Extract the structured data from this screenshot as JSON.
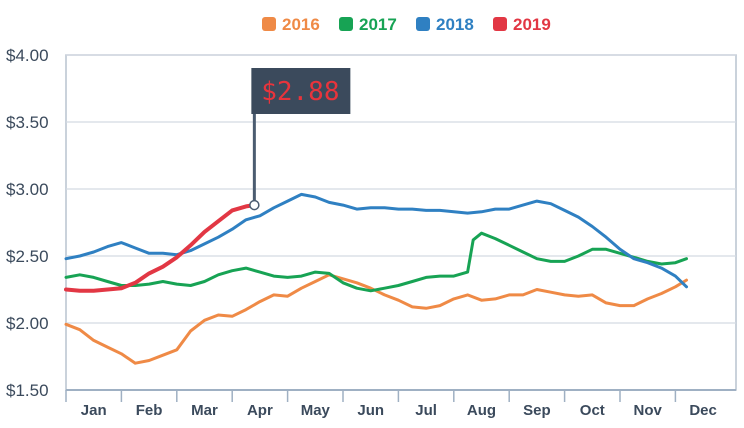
{
  "chart_data": {
    "type": "line",
    "title": "",
    "xlabel": "",
    "ylabel": "",
    "ylim": [
      1.5,
      4.0
    ],
    "y_ticks": [
      "$1.50",
      "$2.00",
      "$2.50",
      "$3.00",
      "$3.50",
      "$4.00"
    ],
    "y_tick_values": [
      1.5,
      2.0,
      2.5,
      3.0,
      3.5,
      4.0
    ],
    "categories": [
      "Jan",
      "Feb",
      "Mar",
      "Apr",
      "May",
      "Jun",
      "Jul",
      "Aug",
      "Sep",
      "Oct",
      "Nov",
      "Dec"
    ],
    "grid": "horizontal",
    "legend_position": "top-center",
    "series": [
      {
        "name": "2016",
        "color": "#ef8a46",
        "points": [
          [
            0,
            1.99
          ],
          [
            0.25,
            1.95
          ],
          [
            0.5,
            1.87
          ],
          [
            0.75,
            1.82
          ],
          [
            1.0,
            1.77
          ],
          [
            1.25,
            1.7
          ],
          [
            1.5,
            1.72
          ],
          [
            1.75,
            1.76
          ],
          [
            2.0,
            1.8
          ],
          [
            2.25,
            1.94
          ],
          [
            2.5,
            2.02
          ],
          [
            2.75,
            2.06
          ],
          [
            3.0,
            2.05
          ],
          [
            3.25,
            2.1
          ],
          [
            3.5,
            2.16
          ],
          [
            3.75,
            2.21
          ],
          [
            4.0,
            2.2
          ],
          [
            4.25,
            2.26
          ],
          [
            4.5,
            2.31
          ],
          [
            4.75,
            2.36
          ],
          [
            5.0,
            2.33
          ],
          [
            5.25,
            2.3
          ],
          [
            5.5,
            2.26
          ],
          [
            5.75,
            2.21
          ],
          [
            6.0,
            2.17
          ],
          [
            6.25,
            2.12
          ],
          [
            6.5,
            2.11
          ],
          [
            6.75,
            2.13
          ],
          [
            7.0,
            2.18
          ],
          [
            7.25,
            2.21
          ],
          [
            7.5,
            2.17
          ],
          [
            7.75,
            2.18
          ],
          [
            8.0,
            2.21
          ],
          [
            8.25,
            2.21
          ],
          [
            8.5,
            2.25
          ],
          [
            8.75,
            2.23
          ],
          [
            9.0,
            2.21
          ],
          [
            9.25,
            2.2
          ],
          [
            9.5,
            2.21
          ],
          [
            9.75,
            2.15
          ],
          [
            10.0,
            2.13
          ],
          [
            10.25,
            2.13
          ],
          [
            10.5,
            2.18
          ],
          [
            10.75,
            2.22
          ],
          [
            11.0,
            2.27
          ],
          [
            11.2,
            2.32
          ]
        ]
      },
      {
        "name": "2017",
        "color": "#17a354",
        "points": [
          [
            0,
            2.34
          ],
          [
            0.25,
            2.36
          ],
          [
            0.5,
            2.34
          ],
          [
            0.75,
            2.31
          ],
          [
            1.0,
            2.28
          ],
          [
            1.25,
            2.28
          ],
          [
            1.5,
            2.29
          ],
          [
            1.75,
            2.31
          ],
          [
            2.0,
            2.29
          ],
          [
            2.25,
            2.28
          ],
          [
            2.5,
            2.31
          ],
          [
            2.75,
            2.36
          ],
          [
            3.0,
            2.39
          ],
          [
            3.25,
            2.41
          ],
          [
            3.5,
            2.38
          ],
          [
            3.75,
            2.35
          ],
          [
            4.0,
            2.34
          ],
          [
            4.25,
            2.35
          ],
          [
            4.5,
            2.38
          ],
          [
            4.75,
            2.37
          ],
          [
            5.0,
            2.3
          ],
          [
            5.25,
            2.26
          ],
          [
            5.5,
            2.24
          ],
          [
            5.75,
            2.26
          ],
          [
            6.0,
            2.28
          ],
          [
            6.25,
            2.31
          ],
          [
            6.5,
            2.34
          ],
          [
            6.75,
            2.35
          ],
          [
            7.0,
            2.35
          ],
          [
            7.25,
            2.38
          ],
          [
            7.35,
            2.62
          ],
          [
            7.5,
            2.67
          ],
          [
            7.75,
            2.63
          ],
          [
            8.0,
            2.58
          ],
          [
            8.25,
            2.53
          ],
          [
            8.5,
            2.48
          ],
          [
            8.75,
            2.46
          ],
          [
            9.0,
            2.46
          ],
          [
            9.25,
            2.5
          ],
          [
            9.5,
            2.55
          ],
          [
            9.75,
            2.55
          ],
          [
            10.0,
            2.52
          ],
          [
            10.25,
            2.49
          ],
          [
            10.5,
            2.46
          ],
          [
            10.75,
            2.44
          ],
          [
            11.0,
            2.45
          ],
          [
            11.2,
            2.48
          ]
        ]
      },
      {
        "name": "2018",
        "color": "#2f80c2",
        "points": [
          [
            0,
            2.48
          ],
          [
            0.25,
            2.5
          ],
          [
            0.5,
            2.53
          ],
          [
            0.75,
            2.57
          ],
          [
            1.0,
            2.6
          ],
          [
            1.25,
            2.56
          ],
          [
            1.5,
            2.52
          ],
          [
            1.75,
            2.52
          ],
          [
            2.0,
            2.51
          ],
          [
            2.25,
            2.54
          ],
          [
            2.5,
            2.59
          ],
          [
            2.75,
            2.64
          ],
          [
            3.0,
            2.7
          ],
          [
            3.25,
            2.77
          ],
          [
            3.5,
            2.8
          ],
          [
            3.75,
            2.86
          ],
          [
            4.0,
            2.91
          ],
          [
            4.25,
            2.96
          ],
          [
            4.5,
            2.94
          ],
          [
            4.75,
            2.9
          ],
          [
            5.0,
            2.88
          ],
          [
            5.25,
            2.85
          ],
          [
            5.5,
            2.86
          ],
          [
            5.75,
            2.86
          ],
          [
            6.0,
            2.85
          ],
          [
            6.25,
            2.85
          ],
          [
            6.5,
            2.84
          ],
          [
            6.75,
            2.84
          ],
          [
            7.0,
            2.83
          ],
          [
            7.25,
            2.82
          ],
          [
            7.5,
            2.83
          ],
          [
            7.75,
            2.85
          ],
          [
            8.0,
            2.85
          ],
          [
            8.25,
            2.88
          ],
          [
            8.5,
            2.91
          ],
          [
            8.75,
            2.89
          ],
          [
            9.0,
            2.84
          ],
          [
            9.25,
            2.79
          ],
          [
            9.5,
            2.72
          ],
          [
            9.75,
            2.64
          ],
          [
            10.0,
            2.55
          ],
          [
            10.25,
            2.48
          ],
          [
            10.5,
            2.45
          ],
          [
            10.75,
            2.41
          ],
          [
            11.0,
            2.35
          ],
          [
            11.2,
            2.27
          ]
        ]
      },
      {
        "name": "2019",
        "color": "#e23744",
        "points": [
          [
            0,
            2.25
          ],
          [
            0.25,
            2.24
          ],
          [
            0.5,
            2.24
          ],
          [
            0.75,
            2.25
          ],
          [
            1.0,
            2.26
          ],
          [
            1.25,
            2.3
          ],
          [
            1.5,
            2.37
          ],
          [
            1.75,
            2.42
          ],
          [
            2.0,
            2.49
          ],
          [
            2.25,
            2.58
          ],
          [
            2.5,
            2.68
          ],
          [
            2.75,
            2.76
          ],
          [
            3.0,
            2.84
          ],
          [
            3.25,
            2.87
          ],
          [
            3.4,
            2.88
          ]
        ]
      }
    ],
    "annotation": {
      "label": "$2.88",
      "series": "2019",
      "x": 3.4,
      "y": 2.88
    }
  }
}
